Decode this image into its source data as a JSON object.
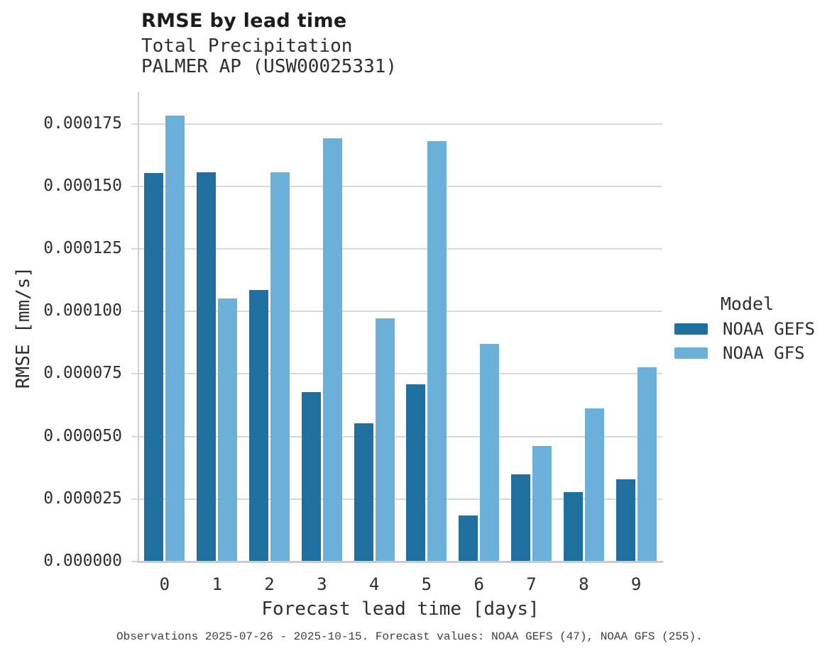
{
  "header": {
    "title": "RMSE by lead time",
    "subtitle_line1": "Total Precipitation",
    "subtitle_line2": "PALMER AP (USW00025331)"
  },
  "footer": {
    "caption": "Observations 2025-07-26 - 2025-10-15. Forecast values: NOAA GEFS (47), NOAA GFS (255)."
  },
  "legend": {
    "title": "Model",
    "items": [
      {
        "label": "NOAA GEFS",
        "color": "#1f6f9f"
      },
      {
        "label": "NOAA GFS",
        "color": "#6bb0d8"
      }
    ]
  },
  "colors": {
    "gefs_bar": "#1f6f9f",
    "gfs_bar": "#6bb0d8",
    "gridline": "#d9d9d9",
    "spine": "#cfcfcf",
    "text": "#2e2e2e",
    "title_text": "#1c1c1c",
    "caption_text": "#3d3d3d",
    "background": "#ffffff"
  },
  "chart_data": {
    "type": "bar",
    "title": "RMSE by lead time",
    "subtitle": [
      "Total Precipitation",
      "PALMER AP (USW00025331)"
    ],
    "xlabel": "Forecast lead time [days]",
    "ylabel": "RMSE [mm/s]",
    "categories": [
      "0",
      "1",
      "2",
      "3",
      "4",
      "5",
      "6",
      "7",
      "8",
      "9"
    ],
    "series": [
      {
        "name": "NOAA GEFS",
        "color": "#1f6f9f",
        "values": [
          0.0001553,
          0.0001558,
          0.0001086,
          6.78e-05,
          5.54e-05,
          7.09e-05,
          1.85e-05,
          3.5e-05,
          2.78e-05,
          3.3e-05
        ]
      },
      {
        "name": "NOAA GFS",
        "color": "#6bb0d8",
        "values": [
          0.0001784,
          0.0001053,
          0.0001558,
          0.0001693,
          9.73e-05,
          0.0001682,
          8.7e-05,
          4.63e-05,
          6.13e-05,
          7.78e-05
        ]
      }
    ],
    "ylim": [
      0,
      0.0001877
    ],
    "yticks": [
      0.0,
      2.5e-05,
      5e-05,
      7.5e-05,
      0.0001,
      0.000125,
      0.00015,
      0.000175
    ],
    "ytick_labels": [
      "0.000000",
      "0.000025",
      "0.000050",
      "0.000075",
      "0.000100",
      "0.000125",
      "0.000150",
      "0.000175"
    ],
    "grid": true,
    "legend_title": "Model",
    "legend_position": "right"
  }
}
